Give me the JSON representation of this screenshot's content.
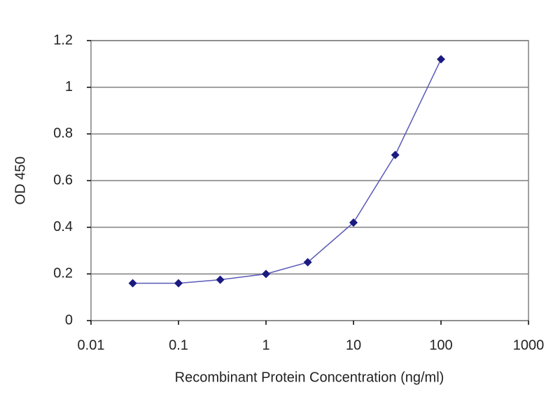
{
  "chart_data": {
    "type": "line",
    "x_label": "Recombinant Protein Concentration (ng/ml)",
    "y_label": "OD 450",
    "x": [
      0.03,
      0.1,
      0.3,
      1,
      3,
      10,
      30,
      100
    ],
    "values": [
      0.16,
      0.16,
      0.175,
      0.2,
      0.25,
      0.42,
      0.71,
      1.12
    ],
    "color": "#1a1a80",
    "x_log": true,
    "xlim": [
      0.01,
      1000
    ],
    "xticks": [
      0.01,
      0.1,
      1,
      10,
      100,
      1000
    ],
    "ylim": [
      0,
      1.2
    ],
    "yticks": [
      0,
      0.2,
      0.4,
      0.6,
      0.8,
      1,
      1.2
    ],
    "grid": true
  }
}
